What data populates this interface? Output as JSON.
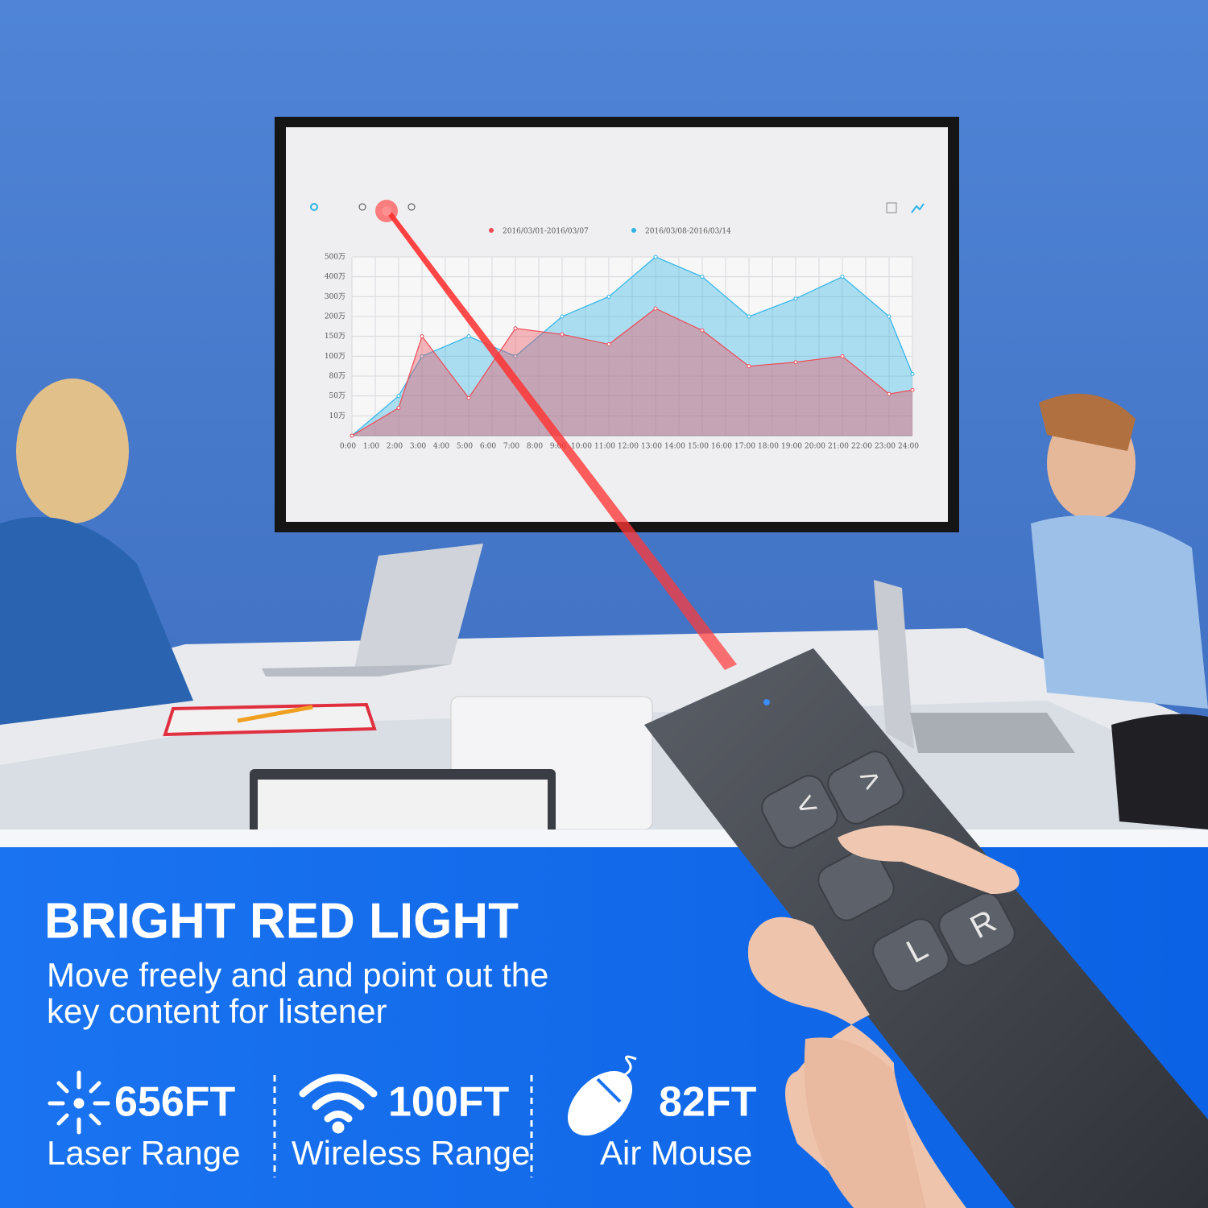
{
  "headline": "BRIGHT RED LIGHT",
  "subtitle_lines": [
    "Move freely and and point out the",
    "key content for listener"
  ],
  "features": [
    {
      "value": "656FT",
      "label": "Laser Range"
    },
    {
      "value": "100FT",
      "label": "Wireless Range"
    },
    {
      "value": "82FT",
      "label": "Air Mouse"
    }
  ],
  "remote": {
    "buttons": [
      "<",
      ">",
      "L",
      "R"
    ]
  },
  "screen_chart": {
    "type": "area",
    "x": [
      0,
      2,
      3,
      5,
      7,
      9,
      11,
      13,
      15,
      17,
      19,
      21,
      23,
      24
    ],
    "series": [
      {
        "name": "2016/03/08-2016/03/14",
        "color": "#2fb3e6",
        "values": [
          0,
          2.0,
          4.0,
          5.0,
          4.0,
          6.0,
          7.0,
          9.0,
          8.0,
          6.0,
          6.9,
          8.0,
          6.0,
          3.1
        ]
      },
      {
        "name": "2016/03/01-2016/03/07",
        "color": "#ee4a55",
        "values": [
          0,
          1.4,
          5.0,
          1.9,
          5.4,
          5.1,
          4.6,
          6.4,
          5.3,
          3.5,
          3.7,
          4.0,
          2.1,
          2.3
        ]
      }
    ],
    "xlim": [
      0,
      24
    ],
    "xticks": [
      {
        "value": 0,
        "label": "0:00"
      },
      {
        "value": 1,
        "label": "1:00"
      },
      {
        "value": 2,
        "label": "2:00"
      },
      {
        "value": 3,
        "label": "3:00"
      },
      {
        "value": 4,
        "label": "4:00"
      },
      {
        "value": 5,
        "label": "5:00"
      },
      {
        "value": 6,
        "label": "6:00"
      },
      {
        "value": 7,
        "label": "7:00"
      },
      {
        "value": 8,
        "label": "8:00"
      },
      {
        "value": 9,
        "label": "9:00"
      },
      {
        "value": 10,
        "label": "10:00"
      },
      {
        "value": 11,
        "label": "11:00"
      },
      {
        "value": 12,
        "label": "12:00"
      },
      {
        "value": 13,
        "label": "13:00"
      },
      {
        "value": 14,
        "label": "14:00"
      },
      {
        "value": 15,
        "label": "15:00"
      },
      {
        "value": 16,
        "label": "16:00"
      },
      {
        "value": 17,
        "label": "17:00"
      },
      {
        "value": 18,
        "label": "18:00"
      },
      {
        "value": 19,
        "label": "19:00"
      },
      {
        "value": 20,
        "label": "20:00"
      },
      {
        "value": 21,
        "label": "21:00"
      },
      {
        "value": 22,
        "label": "22:00"
      },
      {
        "value": 23,
        "label": "23:00"
      },
      {
        "value": 24,
        "label": "24:00"
      }
    ],
    "ylim": [
      0,
      9
    ],
    "yticks": [
      {
        "value": 1,
        "label": "10万"
      },
      {
        "value": 2,
        "label": "50万"
      },
      {
        "value": 3,
        "label": "80万"
      },
      {
        "value": 4,
        "label": "100万"
      },
      {
        "value": 5,
        "label": "150万"
      },
      {
        "value": 6,
        "label": "200万"
      },
      {
        "value": 7,
        "label": "300万"
      },
      {
        "value": 8,
        "label": "400万"
      },
      {
        "value": 9,
        "label": "500万"
      }
    ],
    "grid": true
  }
}
